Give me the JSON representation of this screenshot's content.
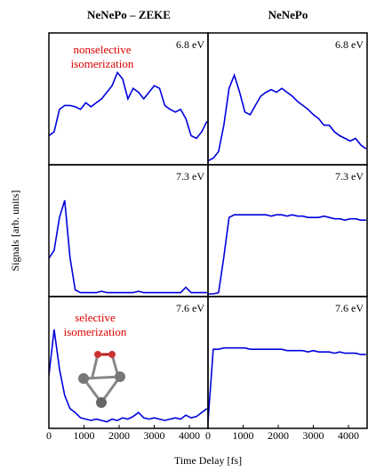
{
  "figure": {
    "column_titles": [
      "NeNePo – ZEKE",
      "NeNePo"
    ],
    "xlabel": "Time Delay [fs]",
    "ylabel": "Signals [arb. units]"
  },
  "chart_data": [
    {
      "type": "line",
      "annotation": "6.8 eV",
      "label_lines": [
        "nonselective",
        "isomerization"
      ],
      "x": [
        0,
        150,
        300,
        450,
        600,
        750,
        900,
        1050,
        1200,
        1350,
        1500,
        1650,
        1800,
        1950,
        2100,
        2250,
        2400,
        2550,
        2700,
        2850,
        3000,
        3150,
        3300,
        3450,
        3600,
        3750,
        3900,
        4050,
        4200,
        4350,
        4500
      ],
      "series": [
        {
          "color": "#0000dd",
          "values": [
            0.22,
            0.25,
            0.42,
            0.45,
            0.45,
            0.44,
            0.42,
            0.47,
            0.44,
            0.47,
            0.5,
            0.55,
            0.6,
            0.7,
            0.65,
            0.5,
            0.58,
            0.55,
            0.5,
            0.55,
            0.6,
            0.58,
            0.45,
            0.42,
            0.4,
            0.42,
            0.35,
            0.22,
            0.2,
            0.25,
            0.33
          ]
        }
      ],
      "xlim": [
        0,
        4530
      ],
      "ylim": [
        0,
        1
      ]
    },
    {
      "type": "line",
      "annotation": "6.8 eV",
      "x": [
        0,
        150,
        300,
        450,
        600,
        750,
        900,
        1050,
        1200,
        1350,
        1500,
        1650,
        1800,
        1950,
        2100,
        2250,
        2400,
        2550,
        2700,
        2850,
        3000,
        3150,
        3300,
        3450,
        3600,
        3750,
        3900,
        4050,
        4200,
        4350,
        4500
      ],
      "series": [
        {
          "color": "#0000dd",
          "values": [
            0.03,
            0.05,
            0.1,
            0.3,
            0.58,
            0.68,
            0.55,
            0.4,
            0.38,
            0.45,
            0.52,
            0.55,
            0.57,
            0.55,
            0.58,
            0.55,
            0.52,
            0.48,
            0.45,
            0.42,
            0.38,
            0.35,
            0.3,
            0.3,
            0.25,
            0.22,
            0.2,
            0.18,
            0.2,
            0.15,
            0.12
          ]
        }
      ],
      "xlim": [
        0,
        4530
      ],
      "ylim": [
        0,
        1
      ]
    },
    {
      "type": "line",
      "annotation": "7.3 eV",
      "x": [
        0,
        150,
        300,
        450,
        600,
        750,
        900,
        1050,
        1200,
        1350,
        1500,
        1650,
        1800,
        1950,
        2100,
        2250,
        2400,
        2550,
        2700,
        2850,
        3000,
        3150,
        3300,
        3450,
        3600,
        3750,
        3900,
        4050,
        4200,
        4350,
        4500
      ],
      "series": [
        {
          "color": "#0000dd",
          "values": [
            0.29,
            0.35,
            0.6,
            0.73,
            0.3,
            0.05,
            0.03,
            0.03,
            0.03,
            0.03,
            0.04,
            0.03,
            0.03,
            0.03,
            0.03,
            0.03,
            0.03,
            0.04,
            0.03,
            0.03,
            0.03,
            0.03,
            0.03,
            0.03,
            0.03,
            0.03,
            0.07,
            0.03,
            0.03,
            0.03,
            0.03
          ]
        }
      ],
      "xlim": [
        0,
        4530
      ],
      "ylim": [
        0,
        1
      ]
    },
    {
      "type": "line",
      "annotation": "7.3 eV",
      "x": [
        0,
        150,
        300,
        450,
        600,
        750,
        900,
        1050,
        1200,
        1350,
        1500,
        1650,
        1800,
        1950,
        2100,
        2250,
        2400,
        2550,
        2700,
        2850,
        3000,
        3150,
        3300,
        3450,
        3600,
        3750,
        3900,
        4050,
        4200,
        4350,
        4500
      ],
      "series": [
        {
          "color": "#0000dd",
          "values": [
            0.02,
            0.02,
            0.03,
            0.3,
            0.6,
            0.62,
            0.62,
            0.62,
            0.62,
            0.62,
            0.62,
            0.62,
            0.61,
            0.62,
            0.62,
            0.61,
            0.62,
            0.61,
            0.61,
            0.6,
            0.6,
            0.6,
            0.61,
            0.6,
            0.59,
            0.59,
            0.58,
            0.59,
            0.59,
            0.58,
            0.58
          ]
        }
      ],
      "xlim": [
        0,
        4530
      ],
      "ylim": [
        0,
        1
      ]
    },
    {
      "type": "line",
      "annotation": "7.6 eV",
      "label_lines": [
        "selective",
        "isomerization"
      ],
      "x": [
        0,
        150,
        300,
        450,
        600,
        750,
        900,
        1050,
        1200,
        1350,
        1500,
        1650,
        1800,
        1950,
        2100,
        2250,
        2400,
        2550,
        2700,
        2850,
        3000,
        3150,
        3300,
        3450,
        3600,
        3750,
        3900,
        4050,
        4200,
        4350,
        4500
      ],
      "series": [
        {
          "color": "#0000dd",
          "values": [
            0.4,
            0.75,
            0.45,
            0.25,
            0.15,
            0.12,
            0.08,
            0.07,
            0.06,
            0.07,
            0.06,
            0.05,
            0.07,
            0.06,
            0.08,
            0.07,
            0.09,
            0.12,
            0.08,
            0.07,
            0.08,
            0.07,
            0.06,
            0.07,
            0.08,
            0.07,
            0.1,
            0.08,
            0.09,
            0.12,
            0.15
          ]
        }
      ],
      "xlim": [
        0,
        4530
      ],
      "ylim": [
        0,
        1
      ],
      "xticks": [
        0,
        1000,
        2000,
        3000,
        4000
      ]
    },
    {
      "type": "line",
      "annotation": "7.6 eV",
      "x": [
        0,
        150,
        300,
        450,
        600,
        750,
        900,
        1050,
        1200,
        1350,
        1500,
        1650,
        1800,
        1950,
        2100,
        2250,
        2400,
        2550,
        2700,
        2850,
        3000,
        3150,
        3300,
        3450,
        3600,
        3750,
        3900,
        4050,
        4200,
        4350,
        4500
      ],
      "series": [
        {
          "color": "#0000dd",
          "values": [
            0.05,
            0.6,
            0.6,
            0.61,
            0.61,
            0.61,
            0.61,
            0.61,
            0.6,
            0.6,
            0.6,
            0.6,
            0.6,
            0.6,
            0.6,
            0.59,
            0.59,
            0.59,
            0.59,
            0.58,
            0.59,
            0.58,
            0.58,
            0.58,
            0.57,
            0.58,
            0.57,
            0.57,
            0.57,
            0.56,
            0.56
          ]
        }
      ],
      "xlim": [
        0,
        4530
      ],
      "ylim": [
        0,
        1
      ],
      "xticks": [
        0,
        1000,
        2000,
        3000,
        4000
      ]
    }
  ]
}
